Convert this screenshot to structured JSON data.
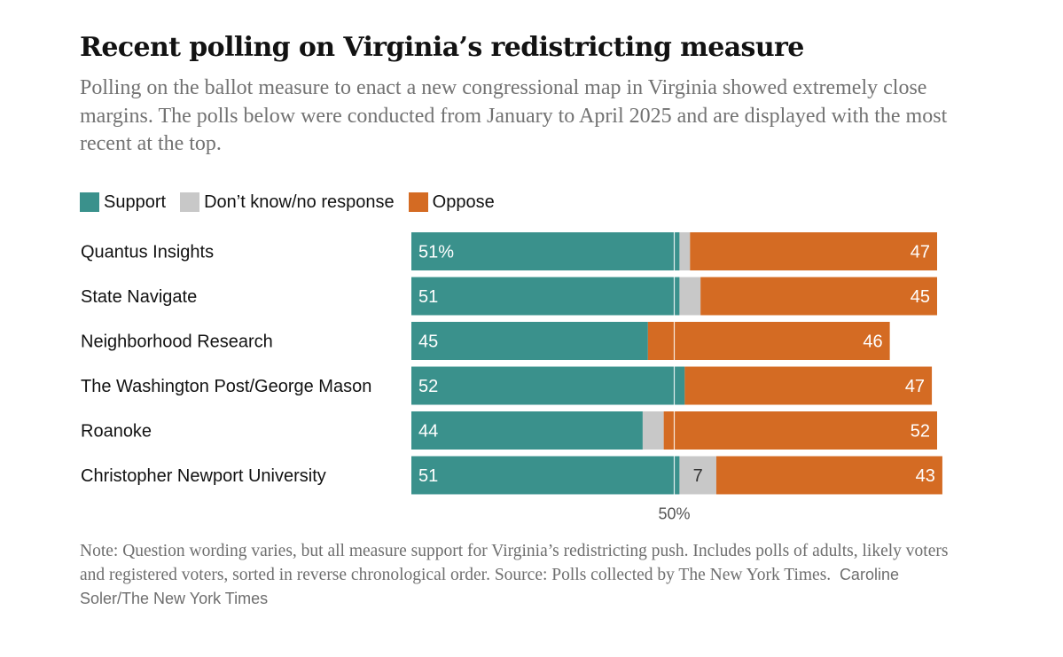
{
  "title": "Recent polling on Virginia’s redistricting measure",
  "subtitle": "Polling on the ballot measure to enact a new congressional map in Virginia showed extremely close margins. The polls below were conducted from January to April 2025 and are displayed with the most recent at the top.",
  "legend": [
    {
      "label": "Support",
      "color": "#3a918c"
    },
    {
      "label": "Don’t know/no response",
      "color": "#c8c8c8"
    },
    {
      "label": "Oppose",
      "color": "#d46b23"
    }
  ],
  "colors": {
    "support": "#3a918c",
    "unsure": "#c8c8c8",
    "oppose": "#d46b23"
  },
  "reference_label": "50%",
  "note_text": "Note: Question wording varies, but all measure support for Virginia’s redistricting push. Includes polls of adults, likely voters and registered voters, sorted in reverse chronological order.  Source: Polls collected by The New York Times.",
  "credit": "Caroline Soler/The New York Times",
  "chart_data": {
    "type": "bar",
    "orientation": "horizontal",
    "stacked": true,
    "categories": [
      "Quantus Insights",
      "State Navigate",
      "Neighborhood Research",
      "The Washington Post/George Mason",
      "Roanoke",
      "Christopher Newport University"
    ],
    "series": [
      {
        "name": "Support",
        "values": [
          51,
          51,
          45,
          52,
          44,
          51
        ]
      },
      {
        "name": "Don’t know/no response",
        "values": [
          2,
          4,
          0,
          0,
          4,
          7
        ]
      },
      {
        "name": "Oppose",
        "values": [
          47,
          45,
          46,
          47,
          52,
          43
        ]
      }
    ],
    "data_labels": {
      "Support": [
        "51%",
        "51",
        "45",
        "52",
        "44",
        "51"
      ],
      "Don’t know/no response": [
        "",
        "",
        "",
        "",
        "",
        "7"
      ],
      "Oppose": [
        "47",
        "45",
        "46",
        "47",
        "52",
        "43"
      ]
    },
    "reference_line": 50,
    "xlim": [
      0,
      101
    ],
    "legend_position": "top-left",
    "grid": false
  }
}
